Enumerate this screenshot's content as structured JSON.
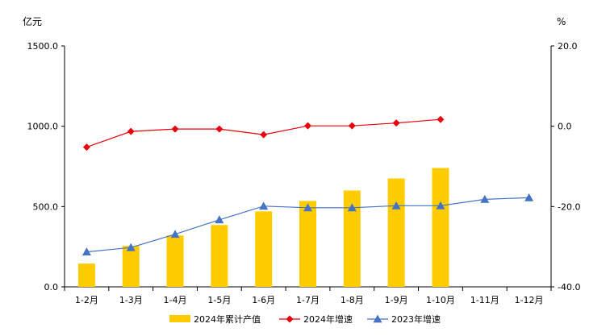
{
  "chart_data": {
    "type": "bar+line",
    "y_left_unit": "亿元",
    "y_right_unit": "%",
    "y_left_range": [
      0,
      1500
    ],
    "y_left_ticks": [
      "0.0",
      "500.0",
      "1000.0",
      "1500.0"
    ],
    "y_right_range": [
      -40,
      20
    ],
    "y_right_ticks": [
      "-40.0",
      "-20.0",
      "0.0",
      "20.0"
    ],
    "categories": [
      "1-2月",
      "1-3月",
      "1-4月",
      "1-5月",
      "1-6月",
      "1-7月",
      "1-8月",
      "1-9月",
      "1-10月",
      "1-11月",
      "1-12月"
    ],
    "series": [
      {
        "name": "2024年累计产值",
        "kind": "bar",
        "axis": "left",
        "color": "#ffcc00",
        "values": [
          145,
          255,
          320,
          385,
          470,
          535,
          600,
          675,
          740,
          null,
          null
        ]
      },
      {
        "name": "2024年增速",
        "kind": "line",
        "axis": "right",
        "marker": "diamond",
        "color": "#e8000b",
        "values": [
          -5.2,
          -1.3,
          -0.7,
          -0.7,
          -2.1,
          0.1,
          0.1,
          0.8,
          1.7,
          null,
          null
        ]
      },
      {
        "name": "2023年增速",
        "kind": "line",
        "axis": "right",
        "marker": "triangle",
        "color": "#4472c4",
        "values": [
          -31.3,
          -30.2,
          -26.9,
          -23.3,
          -19.9,
          -20.3,
          -20.3,
          -19.8,
          -19.8,
          -18.2,
          -17.8
        ]
      }
    ],
    "legend_position": "bottom",
    "grid": false
  }
}
